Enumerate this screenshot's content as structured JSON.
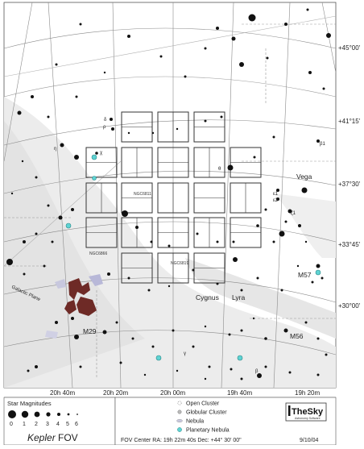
{
  "dec_labels": [
    "+45°00'",
    "+41°15'",
    "+37°30'",
    "+33°45'",
    "+30°00'"
  ],
  "ra_labels": [
    "20h 40m",
    "20h 20m",
    "20h 00m",
    "19h 40m",
    "19h 20m"
  ],
  "labels": {
    "vega": "Vega",
    "cygnus": "Cygnus",
    "lyra": "Lyra",
    "m57": "M57",
    "m56": "M56",
    "m29": "M29",
    "galactic_plane": "Galactic Plane",
    "ngc6811": "NGC6811",
    "ngc6819": "NGC6819",
    "ngc6866": "NGC6866"
  },
  "star_labels": [
    "δ",
    "η",
    "χ",
    "β1",
    "ε1",
    "ε2",
    "ζ1",
    "γ",
    "θ",
    "β",
    "ρ"
  ],
  "legend": {
    "magnitudes_title": "Star Magnitudes",
    "magnitude_scale": [
      "0",
      "1",
      "2",
      "3",
      "4",
      "5",
      "6"
    ],
    "types": [
      "Open Cluster",
      "Globular Cluster",
      "Nebula",
      "Planetary Nebula"
    ],
    "title_italic": "Kepler",
    "title_suffix": " FOV",
    "logo": "TheSky",
    "logo_sub": "Astronomy Software",
    "fov_center": "FOV Center RA: 19h 22m 40s Dec: +44° 30' 00\"",
    "date": "9/10/04"
  },
  "colors": {
    "planetary_nebula": "#5fd3d3",
    "nebula": "#6e2a26",
    "milky_way": "#e9e9e9",
    "grid": "#888888"
  }
}
